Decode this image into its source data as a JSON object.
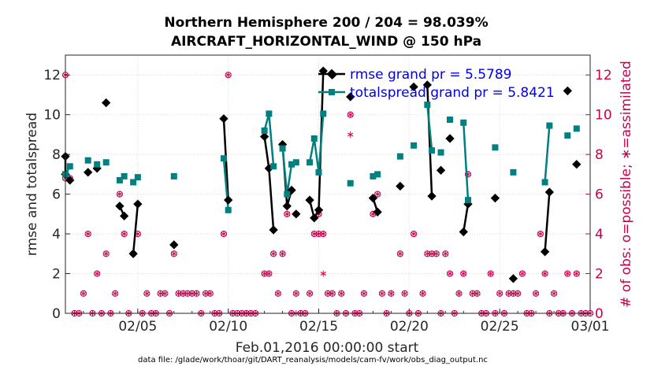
{
  "chart_data": {
    "type": "line",
    "title_line1": "Northern Hemisphere 200 / 204 = 98.039%",
    "title_line2": "AIRCRAFT_HORIZONTAL_WIND @ 150 hPa",
    "ylabel": "rmse and totalspread",
    "ylabel_right": "# of obs: o=possible; ∗=assimilated",
    "xlabel": "Feb.01,2016 00:00:00 start",
    "footer": "data file: /glade/work/thoar/git/DART_reanalysis/models/cam-fv/work/obs_diag_output.nc",
    "xlim": [
      1,
      30
    ],
    "ylim": [
      0,
      13
    ],
    "ylim_right": [
      0,
      13
    ],
    "x_ticks": [
      {
        "v": 5,
        "label": "02/05"
      },
      {
        "v": 10,
        "label": "02/10"
      },
      {
        "v": 15,
        "label": "02/15"
      },
      {
        "v": 20,
        "label": "02/20"
      },
      {
        "v": 25,
        "label": "02/25"
      },
      {
        "v": 30,
        "label": "03/01"
      }
    ],
    "y_ticks": [
      0,
      2,
      4,
      6,
      8,
      10,
      12
    ],
    "y_ticks_right": [
      0,
      2,
      4,
      6,
      8,
      10,
      12
    ],
    "grid": true,
    "legend": [
      {
        "label": "rmse grand pr = 5.5789",
        "color": "#000000",
        "marker": "diamond"
      },
      {
        "label": "totalspread grand pr = 5.8421",
        "color": "#008080",
        "marker": "square"
      }
    ],
    "series": [
      {
        "name": "rmse",
        "color": "#000000",
        "marker": "diamond",
        "points": [
          [
            1.0,
            7.9
          ],
          [
            1.0,
            7.0
          ],
          [
            1.25,
            6.7
          ],
          null,
          [
            2.25,
            7.1
          ],
          null,
          [
            2.75,
            7.3
          ],
          null,
          [
            3.25,
            10.6
          ],
          null,
          [
            4.0,
            5.4
          ],
          [
            4.25,
            4.9
          ],
          null,
          [
            4.75,
            3.0
          ],
          [
            5.0,
            5.5
          ],
          null,
          [
            7.0,
            3.45
          ],
          null,
          [
            9.75,
            9.8
          ],
          [
            10.0,
            5.7
          ],
          null,
          [
            12.0,
            8.9
          ],
          [
            12.25,
            7.3
          ],
          [
            12.5,
            4.2
          ],
          null,
          [
            13.0,
            8.5
          ],
          [
            13.25,
            5.4
          ],
          [
            13.5,
            6.2
          ],
          null,
          [
            13.75,
            5.0
          ],
          null,
          [
            14.5,
            5.7
          ],
          [
            14.75,
            4.8
          ],
          [
            15.0,
            5.2
          ],
          [
            15.25,
            12.2
          ],
          null,
          [
            15.75,
            12.0
          ],
          null,
          [
            16.75,
            10.9
          ],
          null,
          [
            18.0,
            5.8
          ],
          [
            18.25,
            5.1
          ],
          null,
          [
            19.5,
            6.4
          ],
          null,
          [
            20.25,
            11.4
          ],
          null,
          [
            21.0,
            11.5
          ],
          [
            21.25,
            5.9
          ],
          null,
          [
            21.75,
            7.2
          ],
          null,
          [
            22.25,
            8.8
          ],
          null,
          [
            23.0,
            4.1
          ],
          [
            23.25,
            5.5
          ],
          null,
          [
            24.75,
            5.8
          ],
          null,
          [
            25.75,
            1.75
          ],
          null,
          [
            27.5,
            3.1
          ],
          [
            27.75,
            6.1
          ],
          null,
          [
            28.75,
            11.2
          ],
          null,
          [
            29.25,
            7.5
          ]
        ]
      },
      {
        "name": "totalspread",
        "color": "#008080",
        "marker": "square",
        "points": [
          [
            1.0,
            7.0
          ],
          [
            1.25,
            7.4
          ],
          null,
          [
            2.25,
            7.7
          ],
          null,
          [
            2.75,
            7.5
          ],
          null,
          [
            3.25,
            7.6
          ],
          null,
          [
            4.0,
            6.7
          ],
          [
            4.25,
            6.9
          ],
          null,
          [
            4.75,
            6.6
          ],
          [
            5.0,
            6.85
          ],
          null,
          [
            7.0,
            6.9
          ],
          null,
          [
            9.75,
            7.8
          ],
          [
            10.0,
            5.2
          ],
          null,
          [
            12.0,
            9.2
          ],
          [
            12.25,
            10.05
          ],
          [
            12.5,
            7.4
          ],
          null,
          [
            13.0,
            8.3
          ],
          [
            13.25,
            6.0
          ],
          [
            13.5,
            7.5
          ],
          null,
          [
            13.75,
            7.6
          ],
          null,
          [
            14.5,
            7.6
          ],
          [
            14.75,
            8.8
          ],
          [
            15.0,
            7.1
          ],
          [
            15.25,
            10.05
          ],
          null,
          [
            16.75,
            6.55
          ],
          null,
          [
            18.0,
            6.9
          ],
          [
            18.25,
            7.0
          ],
          null,
          [
            19.5,
            7.9
          ],
          null,
          [
            20.25,
            8.45
          ],
          null,
          [
            21.0,
            10.5
          ],
          [
            21.25,
            8.2
          ],
          null,
          [
            21.75,
            8.1
          ],
          null,
          [
            22.25,
            9.75
          ],
          null,
          [
            23.0,
            9.6
          ],
          [
            23.25,
            5.7
          ],
          null,
          [
            24.75,
            8.35
          ],
          null,
          [
            25.75,
            7.1
          ],
          null,
          [
            27.5,
            6.6
          ],
          [
            27.75,
            9.45
          ],
          null,
          [
            28.75,
            8.95
          ],
          null,
          [
            29.25,
            9.3
          ]
        ]
      }
    ],
    "obs_possible": [
      [
        1.0,
        12
      ],
      [
        1.0,
        6.8
      ],
      [
        1.25,
        6.8
      ],
      [
        1.5,
        0
      ],
      [
        1.75,
        0
      ],
      [
        2.0,
        1
      ],
      [
        2.25,
        4
      ],
      [
        2.5,
        0
      ],
      [
        2.75,
        2
      ],
      [
        3.0,
        0
      ],
      [
        3.25,
        3
      ],
      [
        3.5,
        0
      ],
      [
        3.75,
        1
      ],
      [
        4.0,
        6
      ],
      [
        4.25,
        4
      ],
      [
        4.5,
        0
      ],
      [
        4.75,
        3
      ],
      [
        5.0,
        4
      ],
      [
        5.25,
        0
      ],
      [
        5.5,
        1
      ],
      [
        5.75,
        0
      ],
      [
        6.0,
        0
      ],
      [
        6.25,
        1
      ],
      [
        6.5,
        1
      ],
      [
        6.75,
        0
      ],
      [
        7.0,
        3
      ],
      [
        7.25,
        1
      ],
      [
        7.5,
        1
      ],
      [
        7.75,
        1
      ],
      [
        8.0,
        1
      ],
      [
        8.25,
        1
      ],
      [
        8.5,
        0
      ],
      [
        8.75,
        1
      ],
      [
        9.0,
        1
      ],
      [
        9.25,
        0
      ],
      [
        9.5,
        0
      ],
      [
        9.75,
        4
      ],
      [
        10.0,
        12
      ],
      [
        10.25,
        0
      ],
      [
        10.5,
        0
      ],
      [
        10.75,
        0
      ],
      [
        11.0,
        0
      ],
      [
        11.25,
        0
      ],
      [
        11.5,
        0
      ],
      [
        12.0,
        2
      ],
      [
        12.25,
        2
      ],
      [
        12.5,
        3
      ],
      [
        12.75,
        1
      ],
      [
        13.0,
        3
      ],
      [
        13.25,
        5
      ],
      [
        13.5,
        0
      ],
      [
        13.75,
        1
      ],
      [
        13.75,
        5
      ],
      [
        14.0,
        0
      ],
      [
        14.25,
        0
      ],
      [
        14.5,
        1
      ],
      [
        14.75,
        4
      ],
      [
        15.0,
        5
      ],
      [
        15.0,
        4
      ],
      [
        15.25,
        4
      ],
      [
        15.5,
        1
      ],
      [
        15.75,
        1
      ],
      [
        16.0,
        0
      ],
      [
        16.25,
        1
      ],
      [
        16.5,
        0
      ],
      [
        16.75,
        10
      ],
      [
        17.0,
        0
      ],
      [
        17.25,
        0
      ],
      [
        17.5,
        1
      ],
      [
        18.0,
        5
      ],
      [
        18.25,
        6
      ],
      [
        18.5,
        1
      ],
      [
        18.75,
        0
      ],
      [
        19.0,
        1
      ],
      [
        19.5,
        3
      ],
      [
        19.75,
        1
      ],
      [
        20.0,
        0
      ],
      [
        20.25,
        4
      ],
      [
        20.5,
        0
      ],
      [
        20.75,
        1
      ],
      [
        21.0,
        3
      ],
      [
        21.25,
        3
      ],
      [
        21.5,
        3
      ],
      [
        21.75,
        0
      ],
      [
        22.0,
        3
      ],
      [
        22.25,
        2
      ],
      [
        22.5,
        0
      ],
      [
        22.75,
        1
      ],
      [
        23.0,
        2
      ],
      [
        23.25,
        7
      ],
      [
        23.5,
        1
      ],
      [
        23.75,
        1
      ],
      [
        24.0,
        0
      ],
      [
        24.25,
        0
      ],
      [
        24.5,
        2
      ],
      [
        24.75,
        0
      ],
      [
        25.0,
        1
      ],
      [
        25.25,
        0
      ],
      [
        25.5,
        1
      ],
      [
        25.75,
        1
      ],
      [
        26.0,
        1
      ],
      [
        26.25,
        2
      ],
      [
        26.5,
        0
      ],
      [
        26.75,
        0
      ],
      [
        27.0,
        1
      ],
      [
        27.25,
        4
      ],
      [
        27.5,
        2
      ],
      [
        27.75,
        0
      ],
      [
        28.0,
        1
      ],
      [
        28.25,
        0
      ],
      [
        28.5,
        0
      ],
      [
        28.75,
        2
      ],
      [
        29.0,
        0
      ],
      [
        29.25,
        2
      ],
      [
        29.5,
        0
      ],
      [
        29.75,
        0
      ],
      [
        30.0,
        0
      ]
    ],
    "obs_assimilated_only": [
      [
        13.75,
        0
      ],
      [
        15.25,
        2
      ],
      [
        16.75,
        9
      ]
    ]
  }
}
